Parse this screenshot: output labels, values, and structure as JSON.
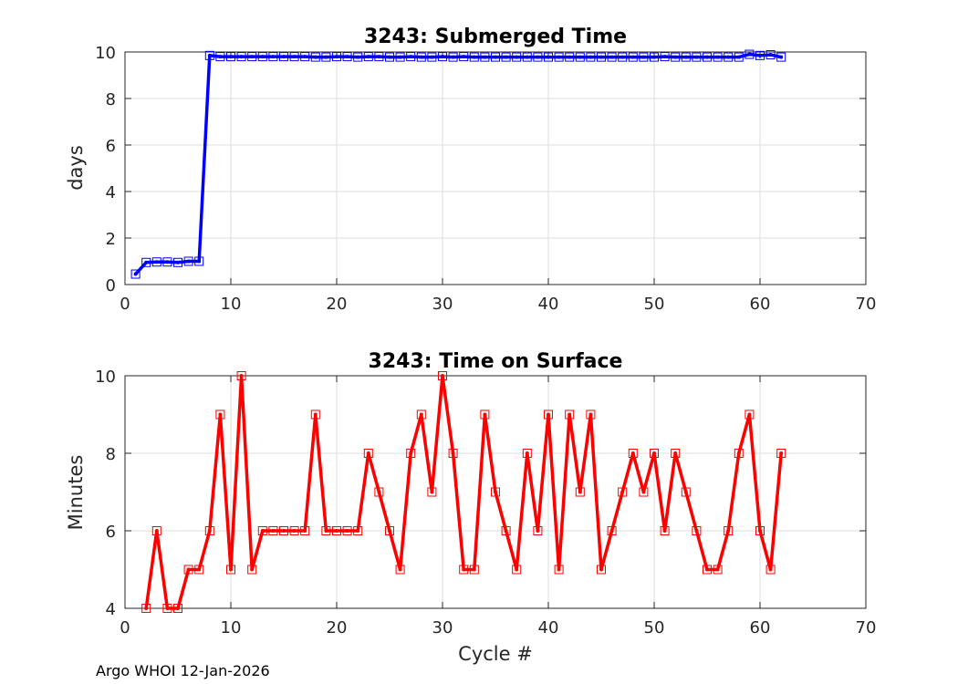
{
  "footer": "Argo WHOI 12-Jan-2026",
  "chart_data": [
    {
      "type": "line",
      "title": "3243: Submerged Time",
      "xlabel": "",
      "ylabel": "days",
      "xlim": [
        0,
        70
      ],
      "ylim": [
        0,
        10
      ],
      "xticks": [
        0,
        10,
        20,
        30,
        40,
        50,
        60,
        70
      ],
      "yticks": [
        0,
        2,
        4,
        6,
        8,
        10
      ],
      "grid": true,
      "color": "#0000ff",
      "marker": "square",
      "x": [
        1,
        2,
        3,
        4,
        5,
        6,
        7,
        8,
        9,
        10,
        11,
        12,
        13,
        14,
        15,
        16,
        17,
        18,
        19,
        20,
        21,
        22,
        23,
        24,
        25,
        26,
        27,
        28,
        29,
        30,
        31,
        32,
        33,
        34,
        35,
        36,
        37,
        38,
        39,
        40,
        41,
        42,
        43,
        44,
        45,
        46,
        47,
        48,
        49,
        50,
        51,
        52,
        53,
        54,
        55,
        56,
        57,
        58,
        59,
        60,
        61,
        62
      ],
      "values": [
        0.45,
        0.95,
        0.97,
        0.97,
        0.95,
        1.0,
        1.0,
        9.85,
        9.8,
        9.8,
        9.8,
        9.8,
        9.8,
        9.8,
        9.8,
        9.8,
        9.8,
        9.78,
        9.78,
        9.8,
        9.8,
        9.78,
        9.8,
        9.8,
        9.78,
        9.78,
        9.8,
        9.78,
        9.78,
        9.8,
        9.78,
        9.8,
        9.78,
        9.78,
        9.78,
        9.78,
        9.78,
        9.78,
        9.78,
        9.78,
        9.78,
        9.78,
        9.78,
        9.78,
        9.78,
        9.78,
        9.78,
        9.78,
        9.78,
        9.78,
        9.8,
        9.78,
        9.78,
        9.78,
        9.78,
        9.78,
        9.78,
        9.78,
        9.9,
        9.85,
        9.88,
        9.78
      ]
    },
    {
      "type": "line",
      "title": "3243: Time on Surface",
      "xlabel": "Cycle #",
      "ylabel": "Minutes",
      "xlim": [
        0,
        70
      ],
      "ylim": [
        4,
        10
      ],
      "xticks": [
        0,
        10,
        20,
        30,
        40,
        50,
        60,
        70
      ],
      "yticks": [
        4,
        6,
        8,
        10
      ],
      "grid": true,
      "color": "#ff0000",
      "marker": "square",
      "x": [
        2,
        3,
        4,
        5,
        6,
        7,
        8,
        9,
        10,
        11,
        12,
        13,
        14,
        15,
        16,
        17,
        18,
        19,
        20,
        21,
        22,
        23,
        24,
        25,
        26,
        27,
        28,
        29,
        30,
        31,
        32,
        33,
        34,
        35,
        36,
        37,
        38,
        39,
        40,
        41,
        42,
        43,
        44,
        45,
        46,
        47,
        48,
        49,
        50,
        51,
        52,
        53,
        54,
        55,
        56,
        57,
        58,
        59,
        60,
        61,
        62
      ],
      "values": [
        4,
        6,
        4,
        4,
        5,
        5,
        6,
        9,
        5,
        10,
        5,
        6,
        6,
        6,
        6,
        6,
        9,
        6,
        6,
        6,
        6,
        8,
        7,
        6,
        5,
        8,
        9,
        7,
        10,
        8,
        5,
        5,
        9,
        7,
        6,
        5,
        8,
        6,
        9,
        5,
        9,
        7,
        9,
        5,
        6,
        7,
        8,
        7,
        8,
        6,
        8,
        7,
        6,
        5,
        5,
        6,
        8,
        9,
        6,
        5,
        8
      ]
    }
  ]
}
